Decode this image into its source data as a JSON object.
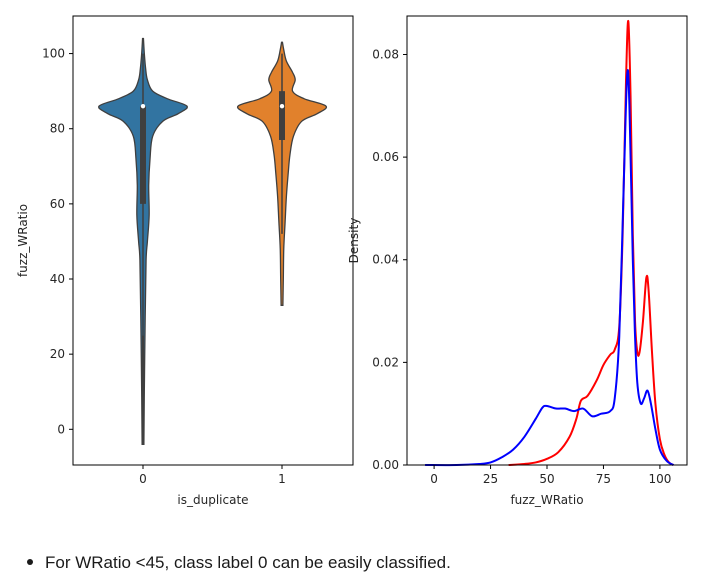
{
  "colors": {
    "violin_0": "#3274a1",
    "violin_1": "#e1812c",
    "density_class_1": "#ff0000",
    "density_class_0": "#0000ff",
    "outline": "#3f3f3f"
  },
  "note": {
    "text": "For WRatio <45, class label 0 can be easily classified."
  },
  "chart_data": [
    {
      "type": "violin",
      "xlabel": "is_duplicate",
      "ylabel": "fuzz_WRatio",
      "ylim": [
        -9.5,
        110
      ],
      "yticks": [
        0,
        20,
        40,
        60,
        80,
        100
      ],
      "categories": [
        "0",
        "1"
      ],
      "series": [
        {
          "category": "0",
          "color": "#3274a1",
          "min": -4,
          "max": 104,
          "q1": 60,
          "median": 86,
          "q3": 86,
          "whisker_low": 25,
          "whisker_high": 100,
          "density_profile": [
            [
              -4,
              0.02
            ],
            [
              10,
              0.03
            ],
            [
              30,
              0.05
            ],
            [
              45,
              0.07
            ],
            [
              50,
              0.1
            ],
            [
              57,
              0.14
            ],
            [
              65,
              0.13
            ],
            [
              72,
              0.16
            ],
            [
              78,
              0.22
            ],
            [
              82,
              0.45
            ],
            [
              84,
              0.8
            ],
            [
              86,
              1.0
            ],
            [
              88,
              0.55
            ],
            [
              90,
              0.22
            ],
            [
              93,
              0.1
            ],
            [
              96,
              0.06
            ],
            [
              100,
              0.03
            ],
            [
              104,
              0.01
            ]
          ]
        },
        {
          "category": "1",
          "color": "#e1812c",
          "min": 33,
          "max": 103,
          "q1": 77,
          "median": 86,
          "q3": 90,
          "whisker_low": 52,
          "whisker_high": 100,
          "density_profile": [
            [
              33,
              0.02
            ],
            [
              40,
              0.03
            ],
            [
              48,
              0.04
            ],
            [
              55,
              0.07
            ],
            [
              62,
              0.1
            ],
            [
              68,
              0.14
            ],
            [
              73,
              0.18
            ],
            [
              78,
              0.26
            ],
            [
              82,
              0.45
            ],
            [
              84,
              0.8
            ],
            [
              86,
              1.0
            ],
            [
              88,
              0.5
            ],
            [
              90,
              0.24
            ],
            [
              93,
              0.3
            ],
            [
              95,
              0.24
            ],
            [
              98,
              0.1
            ],
            [
              101,
              0.04
            ],
            [
              103,
              0.01
            ]
          ]
        }
      ]
    },
    {
      "type": "line",
      "title": "",
      "xlabel": "fuzz_WRatio",
      "ylabel": "Density",
      "xlim": [
        -12,
        112
      ],
      "ylim": [
        0,
        0.0875
      ],
      "xticks": [
        0,
        25,
        50,
        75,
        100
      ],
      "yticks": [
        0.0,
        0.02,
        0.04,
        0.06,
        0.08
      ],
      "ytick_labels": [
        "0.00",
        "0.02",
        "0.04",
        "0.06",
        "0.08"
      ],
      "series": [
        {
          "color": "#ff0000",
          "points": [
            [
              33,
              0.0
            ],
            [
              40,
              0.0002
            ],
            [
              45,
              0.0005
            ],
            [
              50,
              0.0012
            ],
            [
              55,
              0.0025
            ],
            [
              60,
              0.0055
            ],
            [
              63,
              0.009
            ],
            [
              65,
              0.0125
            ],
            [
              68,
              0.0135
            ],
            [
              72,
              0.0165
            ],
            [
              75,
              0.0195
            ],
            [
              78,
              0.0215
            ],
            [
              80,
              0.0225
            ],
            [
              82,
              0.027
            ],
            [
              83.5,
              0.045
            ],
            [
              85,
              0.075
            ],
            [
              86,
              0.0865
            ],
            [
              87,
              0.072
            ],
            [
              88,
              0.045
            ],
            [
              89,
              0.028
            ],
            [
              90,
              0.022
            ],
            [
              91,
              0.022
            ],
            [
              92.5,
              0.028
            ],
            [
              94,
              0.0365
            ],
            [
              95,
              0.034
            ],
            [
              96.5,
              0.022
            ],
            [
              98,
              0.012
            ],
            [
              100,
              0.005
            ],
            [
              102,
              0.002
            ],
            [
              104,
              0.0005
            ],
            [
              106,
              0.0
            ]
          ]
        },
        {
          "color": "#0000ff",
          "points": [
            [
              -4,
              0.0
            ],
            [
              10,
              0.0
            ],
            [
              20,
              0.0002
            ],
            [
              25,
              0.0005
            ],
            [
              30,
              0.0015
            ],
            [
              35,
              0.003
            ],
            [
              40,
              0.0055
            ],
            [
              45,
              0.009
            ],
            [
              48,
              0.0112
            ],
            [
              50,
              0.0115
            ],
            [
              54,
              0.011
            ],
            [
              58,
              0.011
            ],
            [
              62,
              0.0105
            ],
            [
              66,
              0.011
            ],
            [
              70,
              0.0095
            ],
            [
              74,
              0.01
            ],
            [
              78,
              0.0105
            ],
            [
              80,
              0.013
            ],
            [
              82,
              0.025
            ],
            [
              84,
              0.055
            ],
            [
              85.5,
              0.076
            ],
            [
              86.5,
              0.07
            ],
            [
              88,
              0.04
            ],
            [
              89,
              0.025
            ],
            [
              90,
              0.016
            ],
            [
              91.5,
              0.012
            ],
            [
              93,
              0.013
            ],
            [
              94.5,
              0.0145
            ],
            [
              96,
              0.012
            ],
            [
              98,
              0.007
            ],
            [
              100,
              0.003
            ],
            [
              103,
              0.0008
            ],
            [
              106,
              0.0
            ]
          ]
        }
      ]
    }
  ]
}
